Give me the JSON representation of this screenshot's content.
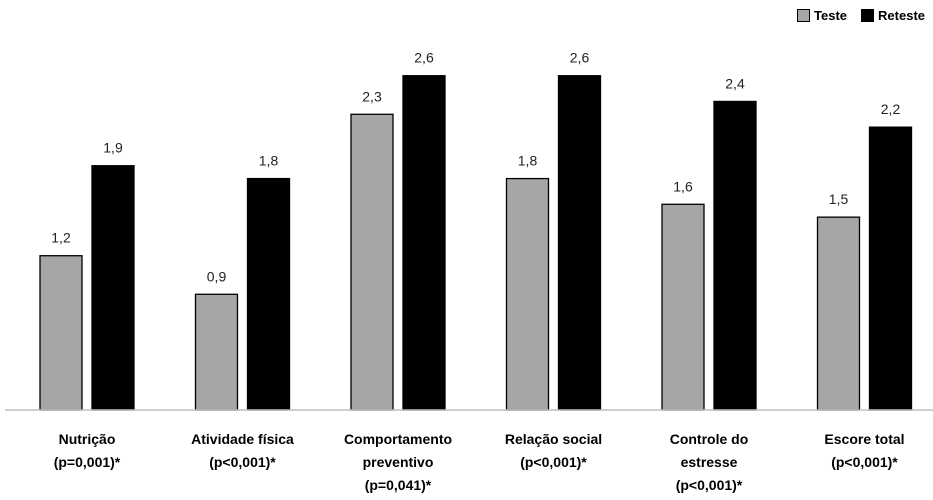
{
  "chart_data": {
    "type": "bar",
    "categories": [
      [
        "Nutrição",
        "(p=0,001)*"
      ],
      [
        "Atividade física",
        "(p<0,001)*"
      ],
      [
        "Comportamento",
        "preventivo",
        "(p=0,041)*"
      ],
      [
        "Relação social",
        "(p<0,001)*"
      ],
      [
        "Controle do",
        "estresse",
        "(p<0,001)*"
      ],
      [
        "Escore total",
        "(p<0,001)*"
      ]
    ],
    "series": [
      {
        "name": "Teste",
        "color": "#a6a6a6",
        "values": [
          1.2,
          0.9,
          2.3,
          1.8,
          1.6,
          1.5
        ],
        "labels": [
          "1,2",
          "0,9",
          "2,3",
          "1,8",
          "1,6",
          "1,5"
        ]
      },
      {
        "name": "Reteste",
        "color": "#000000",
        "values": [
          1.9,
          1.8,
          2.6,
          2.6,
          2.4,
          2.2
        ],
        "labels": [
          "1,9",
          "1,8",
          "2,6",
          "2,6",
          "2,4",
          "2,2"
        ]
      }
    ],
    "title": "",
    "xlabel": "",
    "ylabel": "",
    "ylim": [
      0,
      2.8
    ],
    "grid": false,
    "legend_position": "top-right"
  }
}
